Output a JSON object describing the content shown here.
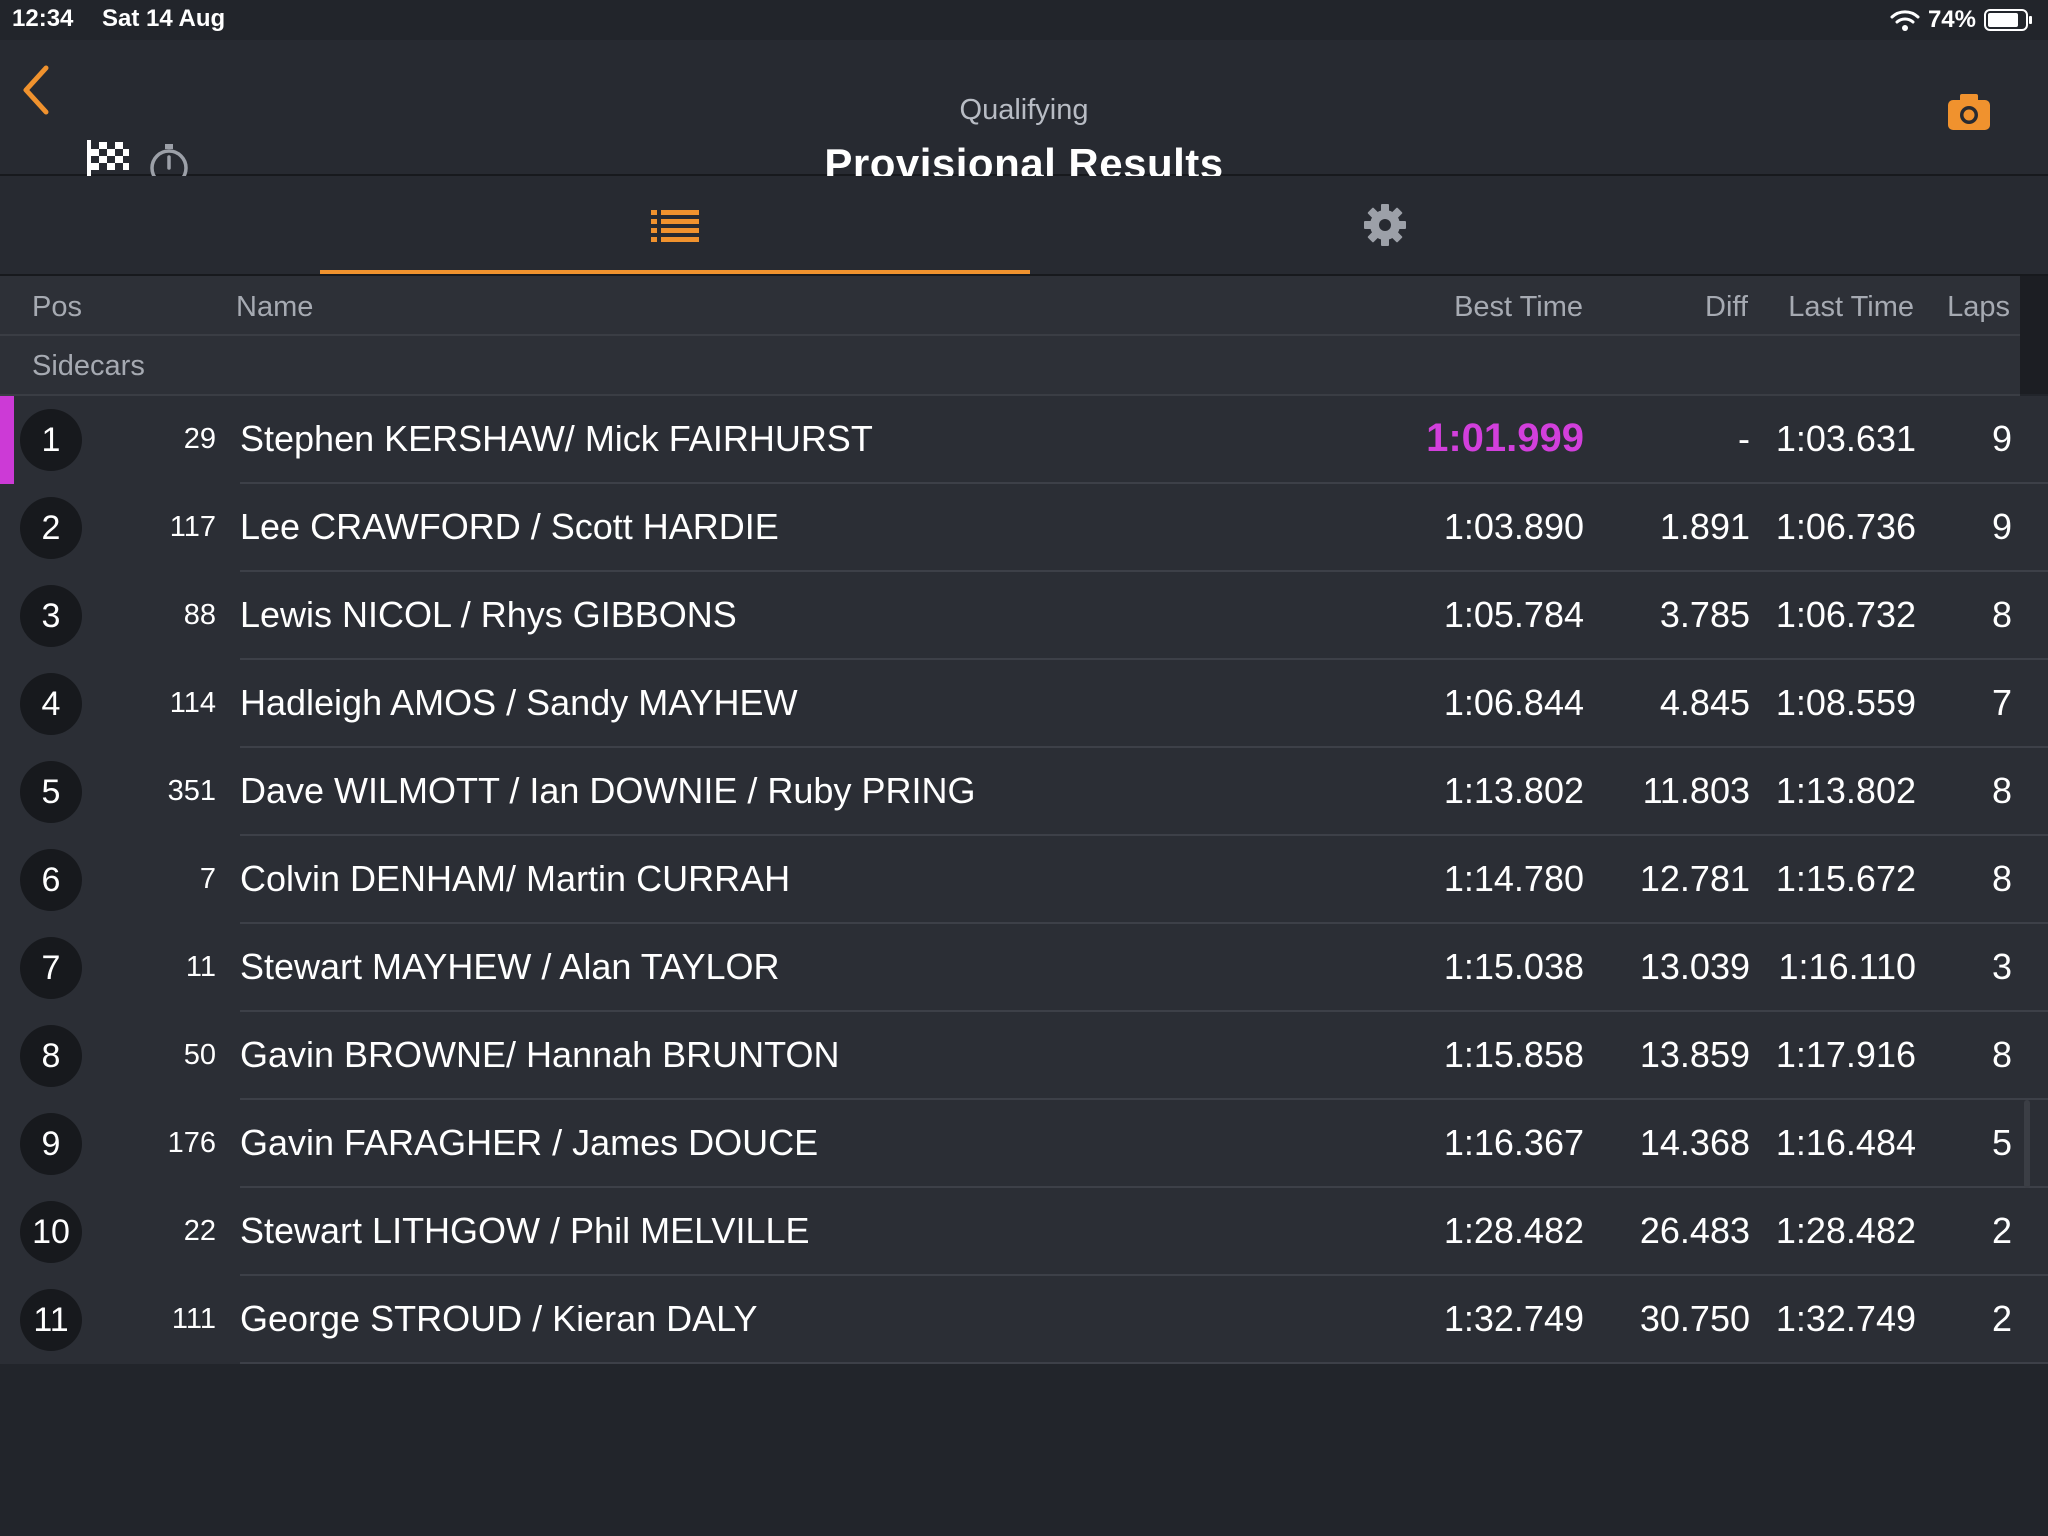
{
  "status_bar": {
    "time": "12:34",
    "date": "Sat 14 Aug",
    "battery": "74%"
  },
  "header": {
    "subtitle": "Qualifying",
    "title": "Provisional Results"
  },
  "icons": {
    "back": "chevron-left-icon",
    "flag": "checkered-flag-icon",
    "stopwatch": "stopwatch-icon",
    "camera": "camera-icon",
    "list": "list-icon",
    "settings": "gear-icon"
  },
  "colors": {
    "accent": "#f0922e",
    "fastest": "#d23fdc",
    "background": "#22252b"
  },
  "columns": {
    "pos": "Pos",
    "name": "Name",
    "best": "Best Time",
    "diff": "Diff",
    "last": "Last Time",
    "laps": "Laps"
  },
  "group": "Sidecars",
  "rows": [
    {
      "pos": "1",
      "num": "29",
      "name": "Stephen KERSHAW/ Mick FAIRHURST",
      "best": "1:01.999",
      "diff": "-",
      "last": "1:03.631",
      "laps": "9"
    },
    {
      "pos": "2",
      "num": "117",
      "name": "Lee CRAWFORD / Scott HARDIE",
      "best": "1:03.890",
      "diff": "1.891",
      "last": "1:06.736",
      "laps": "9"
    },
    {
      "pos": "3",
      "num": "88",
      "name": "Lewis NICOL / Rhys GIBBONS",
      "best": "1:05.784",
      "diff": "3.785",
      "last": "1:06.732",
      "laps": "8"
    },
    {
      "pos": "4",
      "num": "114",
      "name": "Hadleigh AMOS / Sandy MAYHEW",
      "best": "1:06.844",
      "diff": "4.845",
      "last": "1:08.559",
      "laps": "7"
    },
    {
      "pos": "5",
      "num": "351",
      "name": "Dave WILMOTT / Ian DOWNIE / Ruby PRING",
      "best": "1:13.802",
      "diff": "11.803",
      "last": "1:13.802",
      "laps": "8"
    },
    {
      "pos": "6",
      "num": "7",
      "name": "Colvin DENHAM/ Martin CURRAH",
      "best": "1:14.780",
      "diff": "12.781",
      "last": "1:15.672",
      "laps": "8"
    },
    {
      "pos": "7",
      "num": "11",
      "name": "Stewart MAYHEW / Alan TAYLOR",
      "best": "1:15.038",
      "diff": "13.039",
      "last": "1:16.110",
      "laps": "3"
    },
    {
      "pos": "8",
      "num": "50",
      "name": "Gavin BROWNE/ Hannah BRUNTON",
      "best": "1:15.858",
      "diff": "13.859",
      "last": "1:17.916",
      "laps": "8"
    },
    {
      "pos": "9",
      "num": "176",
      "name": "Gavin FARAGHER / James DOUCE",
      "best": "1:16.367",
      "diff": "14.368",
      "last": "1:16.484",
      "laps": "5"
    },
    {
      "pos": "10",
      "num": "22",
      "name": "Stewart LITHGOW / Phil MELVILLE",
      "best": "1:28.482",
      "diff": "26.483",
      "last": "1:28.482",
      "laps": "2"
    },
    {
      "pos": "11",
      "num": "111",
      "name": "George STROUD / Kieran DALY",
      "best": "1:32.749",
      "diff": "30.750",
      "last": "1:32.749",
      "laps": "2"
    }
  ]
}
